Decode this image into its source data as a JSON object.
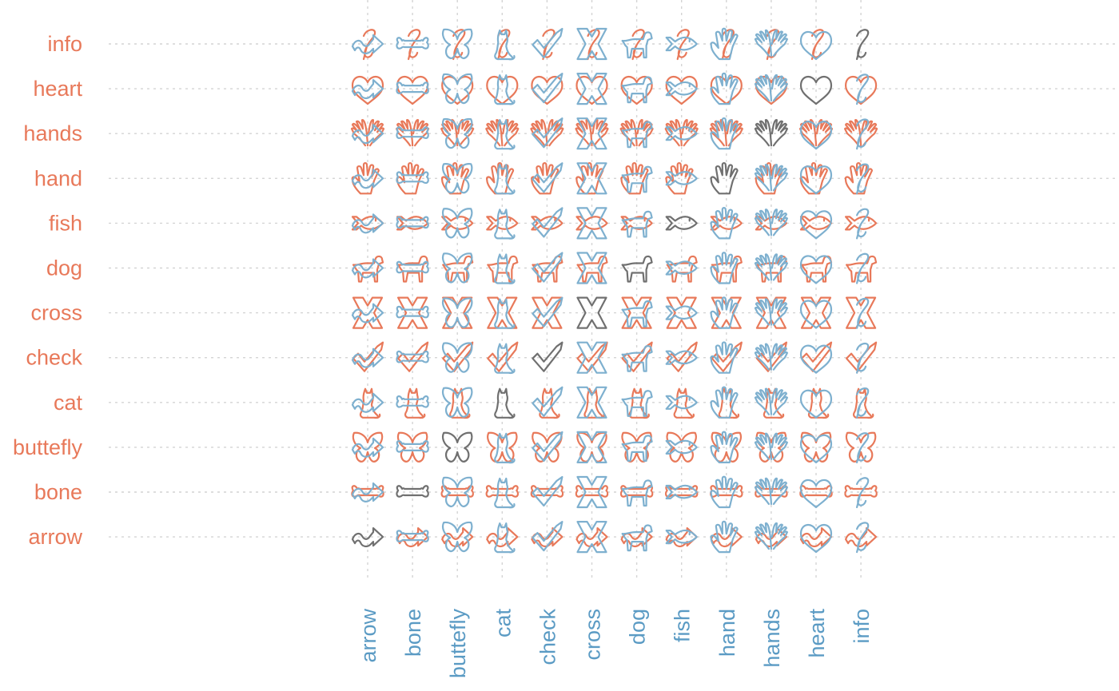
{
  "chart_data": {
    "type": "heatmap",
    "title": "",
    "xlabel": "",
    "ylabel": "",
    "grid": true,
    "colors": {
      "row_shape": "#e8795a",
      "column_shape": "#7eb0cf",
      "diagonal_shape": "#707070",
      "row_label": "#e8795a",
      "column_label": "#5b9bc4",
      "gridline": "#d4d4d4"
    },
    "x_categories": [
      "arrow",
      "bone",
      "buttefly",
      "cat",
      "check",
      "cross",
      "dog",
      "fish",
      "hand",
      "hands",
      "heart",
      "info"
    ],
    "y_categories": [
      "info",
      "heart",
      "hands",
      "hand",
      "fish",
      "dog",
      "cross",
      "check",
      "cat",
      "buttefly",
      "bone",
      "arrow"
    ],
    "icons": {
      "arrow": "arrow-icon",
      "bone": "bone-icon",
      "buttefly": "butterfly-icon",
      "cat": "cat-icon",
      "check": "check-icon",
      "cross": "cross-icon",
      "dog": "dog-icon",
      "fish": "fish-icon",
      "hand": "hand-icon",
      "hands": "hands-icon",
      "heart": "heart-icon",
      "info": "info-icon"
    }
  }
}
